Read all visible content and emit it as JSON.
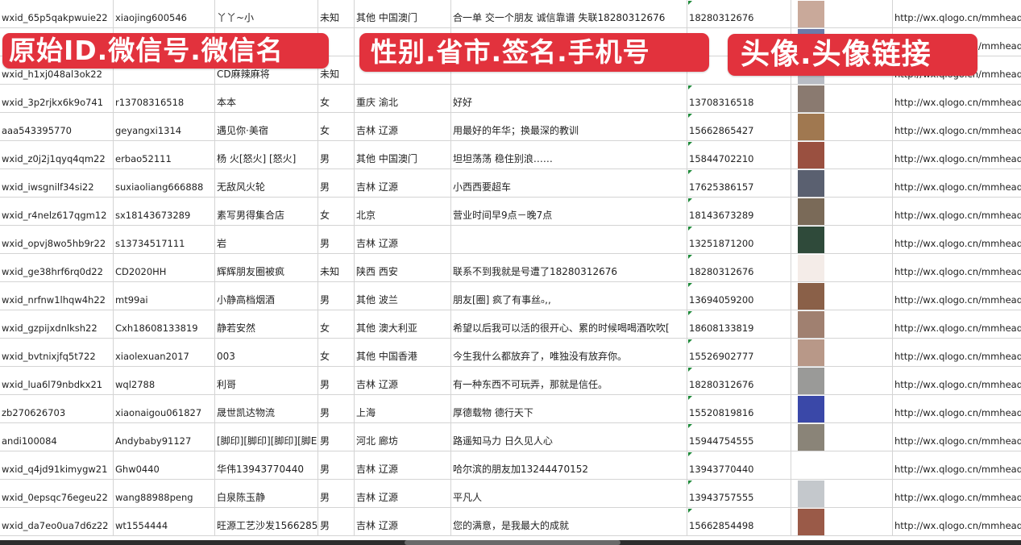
{
  "overlay_labels": [
    "原始ID.微信号.微信名",
    "性别.省市.签名.手机号",
    "头像.头像链接"
  ],
  "overlay_color": "#e2323d",
  "rows": [
    {
      "id": "wxid_65p5qakpwuie22",
      "wechat": "xiaojing600546",
      "name": "丫丫~小",
      "gender": "未知",
      "region": "其他 中国澳门",
      "signature": "合一单 交一个朋友 诚信靠谱 失联18280312676",
      "phone": "18280312676",
      "avatar_color": "#c9a99a",
      "url": "http://wx.qlogo.cn/mmhead"
    },
    {
      "id": "",
      "wechat": "",
      "name": "",
      "gender": "",
      "region": "",
      "signature": "",
      "phone": "",
      "avatar_color": "#6b7aa8",
      "url": "http://wx.qlogo.cn/mmhead"
    },
    {
      "id": "wxid_h1xj048al3ok22",
      "wechat": "",
      "name": "CD麻辣麻将",
      "gender": "未知",
      "region": "",
      "signature": "",
      "phone": "",
      "avatar_color": "#b8bcc4",
      "url": "http://wx.qlogo.cn/mmhead"
    },
    {
      "id": "wxid_3p2rjkx6k9o741",
      "wechat": "r13708316518",
      "name": "本本",
      "gender": "女",
      "region": "重庆 渝北",
      "signature": "好好",
      "phone": "13708316518",
      "avatar_color": "#8a7a70",
      "url": "http://wx.qlogo.cn/mmhead"
    },
    {
      "id": "aaa543395770",
      "wechat": "geyangxi1314",
      "name": "遇见你·美宿",
      "gender": "女",
      "region": "吉林 辽源",
      "signature": "用最好的年华；换最深的教训",
      "phone": "15662865427",
      "avatar_color": "#a07850",
      "url": "http://wx.qlogo.cn/mmhead"
    },
    {
      "id": "wxid_z0j2j1qyq4qm22",
      "wechat": "erbao52111",
      "name": "杨 火[怒火] [怒火]",
      "gender": "男",
      "region": "其他 中国澳门",
      "signature": "坦坦荡荡 稳住别浪……",
      "phone": "15844702210",
      "avatar_color": "#9a5040",
      "url": "http://wx.qlogo.cn/mmhead"
    },
    {
      "id": "wxid_iwsgnilf34si22",
      "wechat": "suxiaoliang666888",
      "name": "无敌风火轮",
      "gender": "男",
      "region": "吉林 辽源",
      "signature": "小西西要超车",
      "phone": "17625386157",
      "avatar_color": "#5a6070",
      "url": "http://wx.qlogo.cn/mmhead"
    },
    {
      "id": "wxid_r4nelz617qgm12",
      "wechat": "sx18143673289",
      "name": "素写男得集合店",
      "gender": "女",
      "region": "北京",
      "signature": "营业时间早9点－晚7点",
      "phone": "18143673289",
      "avatar_color": "#7a6a58",
      "url": "http://wx.qlogo.cn/mmhead"
    },
    {
      "id": "wxid_opvj8wo5hb9r22",
      "wechat": "s13734517111",
      "name": "岩",
      "gender": "男",
      "region": "吉林 辽源",
      "signature": "",
      "phone": "13251871200",
      "avatar_color": "#2f4a3a",
      "url": "http://wx.qlogo.cn/mmhead"
    },
    {
      "id": "wxid_ge38hrf6rq0d22",
      "wechat": "CD2020HH",
      "name": "辉辉朋友圈被疯",
      "gender": "未知",
      "region": "陕西 西安",
      "signature": "联系不到我就是号遭了18280312676",
      "phone": "18280312676",
      "avatar_color": "#f4ece8",
      "url": "http://wx.qlogo.cn/mmhead"
    },
    {
      "id": "wxid_nrfnw1lhqw4h22",
      "wechat": "mt99ai",
      "name": "小静高档烟酒",
      "gender": "男",
      "region": "其他 波兰",
      "signature": "朋友[圈] 疯了有事丝ₒ,,",
      "phone": "13694059200",
      "avatar_color": "#8a6048",
      "url": "http://wx.qlogo.cn/mmhead"
    },
    {
      "id": "wxid_gzpijxdnlksh22",
      "wechat": "Cxh18608133819",
      "name": "静若安然",
      "gender": "女",
      "region": "其他 澳大利亚",
      "signature": "希望以后我可以活的很开心、累的时候喝喝酒吹吹[",
      "phone": "18608133819",
      "avatar_color": "#a08070",
      "url": "http://wx.qlogo.cn/mmhead"
    },
    {
      "id": "wxid_bvtnixjfq5t722",
      "wechat": "xiaolexuan2017",
      "name": "003",
      "gender": "女",
      "region": "其他 中国香港",
      "signature": "今生我什么都放弃了，唯独没有放弃你。",
      "phone": "15526902777",
      "avatar_color": "#b89888",
      "url": "http://wx.qlogo.cn/mmhead"
    },
    {
      "id": "wxid_lua6l79nbdkx21",
      "wechat": "wql2788",
      "name": "利哥",
      "gender": "男",
      "region": "吉林 辽源",
      "signature": "有一种东西不可玩弄，那就是信任。",
      "phone": "18280312676",
      "avatar_color": "#9a9a98",
      "url": "http://wx.qlogo.cn/mmhead"
    },
    {
      "id": "zb270626703",
      "wechat": "xiaonaigou061827",
      "name": "晟世凯达物流",
      "gender": "男",
      "region": "上海",
      "signature": "厚德载物 德行天下",
      "phone": "15520819816",
      "avatar_color": "#3a48a8",
      "url": "http://wx.qlogo.cn/mmhead"
    },
    {
      "id": "andi100084",
      "wechat": "Andybaby91127",
      "name": "[脚印][脚印][脚印][脚E",
      "gender": "男",
      "region": "河北 廊坊",
      "signature": "路遥知马力 日久见人心",
      "phone": "15944754555",
      "avatar_color": "#8a8478",
      "url": "http://wx.qlogo.cn/mmhead"
    },
    {
      "id": "wxid_q4jd91kimygw21",
      "wechat": "Ghw0440",
      "name": "华伟13943770440",
      "gender": "男",
      "region": "吉林 辽源",
      "signature": "哈尔滨的朋友加13244470152",
      "phone": "13943770440",
      "avatar_color": "#ffffff",
      "url": "http://wx.qlogo.cn/mmhead"
    },
    {
      "id": "wxid_0epsqc76egeu22",
      "wechat": "wang88988peng",
      "name": "白泉陈玉静",
      "gender": "男",
      "region": "吉林 辽源",
      "signature": "平凡人",
      "phone": "13943757555",
      "avatar_color": "#c4c8cc",
      "url": "http://wx.qlogo.cn/mmhead"
    },
    {
      "id": "wxid_da7eo0ua7d6z22",
      "wechat": "wt1554444",
      "name": "旺源工艺沙发15662854",
      "gender": "男",
      "region": "吉林 辽源",
      "signature": "您的满意，是我最大的成就",
      "phone": "15662854498",
      "avatar_color": "#9a5a48",
      "url": "http://wx.qlogo.cn/mmhead"
    }
  ]
}
